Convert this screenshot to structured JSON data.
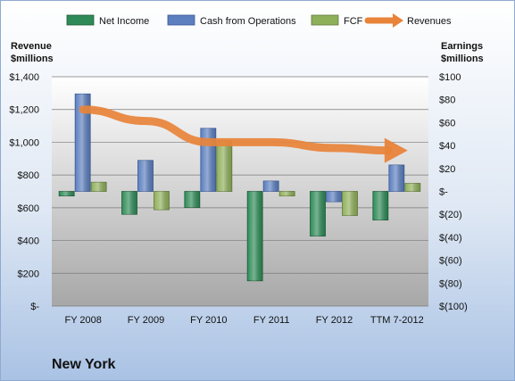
{
  "chart_data": {
    "type": "bar",
    "company": "New York",
    "categories": [
      "FY 2008",
      "FY 2009",
      "FY 2010",
      "FY 2011",
      "FY 2012",
      "TTM 7-2012"
    ],
    "left_axis": {
      "title_line1": "Revenue",
      "title_line2": "$millions",
      "ticks": [
        "$-",
        "$200",
        "$400",
        "$600",
        "$800",
        "$1,000",
        "$1,200",
        "$1,400"
      ],
      "range": [
        0,
        1400
      ]
    },
    "right_axis": {
      "title_line1": "Earnings",
      "title_line2": "$millions",
      "ticks": [
        "$(100)",
        "$(80)",
        "$(60)",
        "$(40)",
        "$(20)",
        "$-",
        "$20",
        "$40",
        "$60",
        "$80",
        "$100"
      ],
      "range": [
        -100,
        100
      ]
    },
    "series": [
      {
        "name": "Net Income",
        "axis": "right",
        "color": "#2e8b57",
        "values": [
          -4,
          -20,
          -14,
          -78,
          -39,
          -25
        ]
      },
      {
        "name": "Cash from Operations",
        "axis": "right",
        "color": "#5b7fbf",
        "values": [
          85,
          27,
          55,
          9,
          -9,
          23
        ]
      },
      {
        "name": "FCF",
        "axis": "right",
        "color": "#8fb05a",
        "values": [
          8,
          -16,
          44,
          -4,
          -21,
          7
        ]
      },
      {
        "name": "Revenues",
        "axis": "left",
        "type": "line",
        "color": "#e8833a",
        "values": [
          1200,
          1130,
          1000,
          1000,
          965,
          950
        ]
      }
    ],
    "grid": true,
    "legend": "top"
  }
}
